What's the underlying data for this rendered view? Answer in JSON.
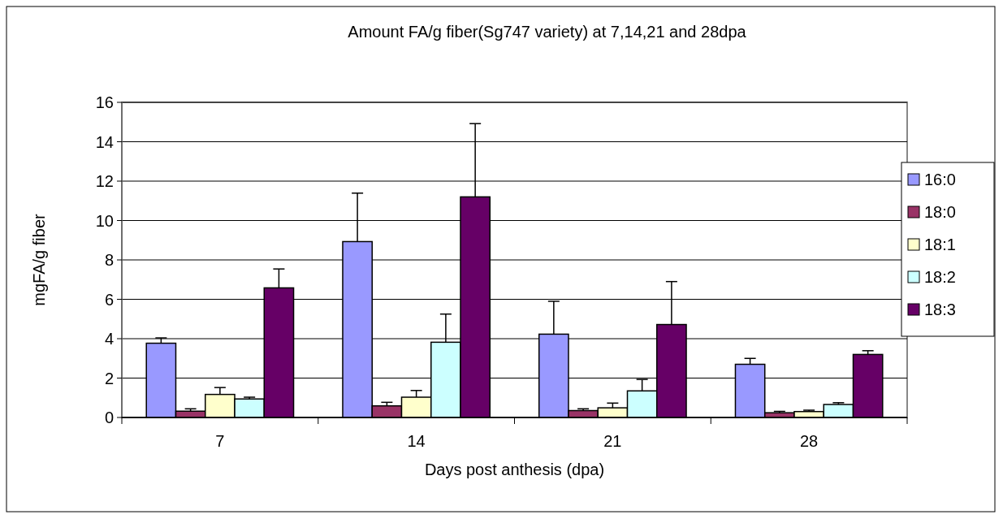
{
  "chart_data": {
    "type": "bar",
    "title": "Amount FA/g fiber(Sg747 variety) at 7,14,21 and 28dpa",
    "xlabel": "Days post anthesis (dpa)",
    "ylabel": "mgFA/g fiber",
    "categories": [
      "7",
      "14",
      "21",
      "28"
    ],
    "series": [
      {
        "name": "16:0",
        "color": "#9999ff",
        "values": [
          3.77,
          8.93,
          4.23,
          2.7
        ],
        "errors": [
          [
            3.77,
            4.04
          ],
          [
            8.93,
            11.39
          ],
          [
            4.23,
            5.9
          ],
          [
            2.7,
            3.0
          ]
        ]
      },
      {
        "name": "18:0",
        "color": "#993366",
        "values": [
          0.32,
          0.59,
          0.35,
          0.24
        ],
        "errors": [
          [
            0.32,
            0.44
          ],
          [
            0.59,
            0.77
          ],
          [
            0.35,
            0.44
          ],
          [
            0.24,
            0.31
          ]
        ]
      },
      {
        "name": "18:1",
        "color": "#ffffcc",
        "values": [
          1.17,
          1.03,
          0.49,
          0.3
        ],
        "errors": [
          [
            1.17,
            1.52
          ],
          [
            1.03,
            1.37
          ],
          [
            0.49,
            0.73
          ],
          [
            0.3,
            0.37
          ]
        ]
      },
      {
        "name": "18:2",
        "color": "#ccffff",
        "values": [
          0.94,
          3.82,
          1.35,
          0.66
        ],
        "errors": [
          [
            0.94,
            1.03
          ],
          [
            3.82,
            5.25
          ],
          [
            1.35,
            1.93
          ],
          [
            0.66,
            0.75
          ]
        ]
      },
      {
        "name": "18:3",
        "color": "#660066",
        "values": [
          6.58,
          11.2,
          4.72,
          3.2
        ],
        "errors": [
          [
            6.58,
            7.54
          ],
          [
            11.2,
            14.92
          ],
          [
            4.72,
            6.9
          ],
          [
            3.2,
            3.39
          ]
        ]
      }
    ],
    "ylim": [
      0,
      16
    ],
    "yticks": [
      0,
      2,
      4,
      6,
      8,
      10,
      12,
      14,
      16
    ],
    "grid": "y",
    "legend": "right"
  }
}
